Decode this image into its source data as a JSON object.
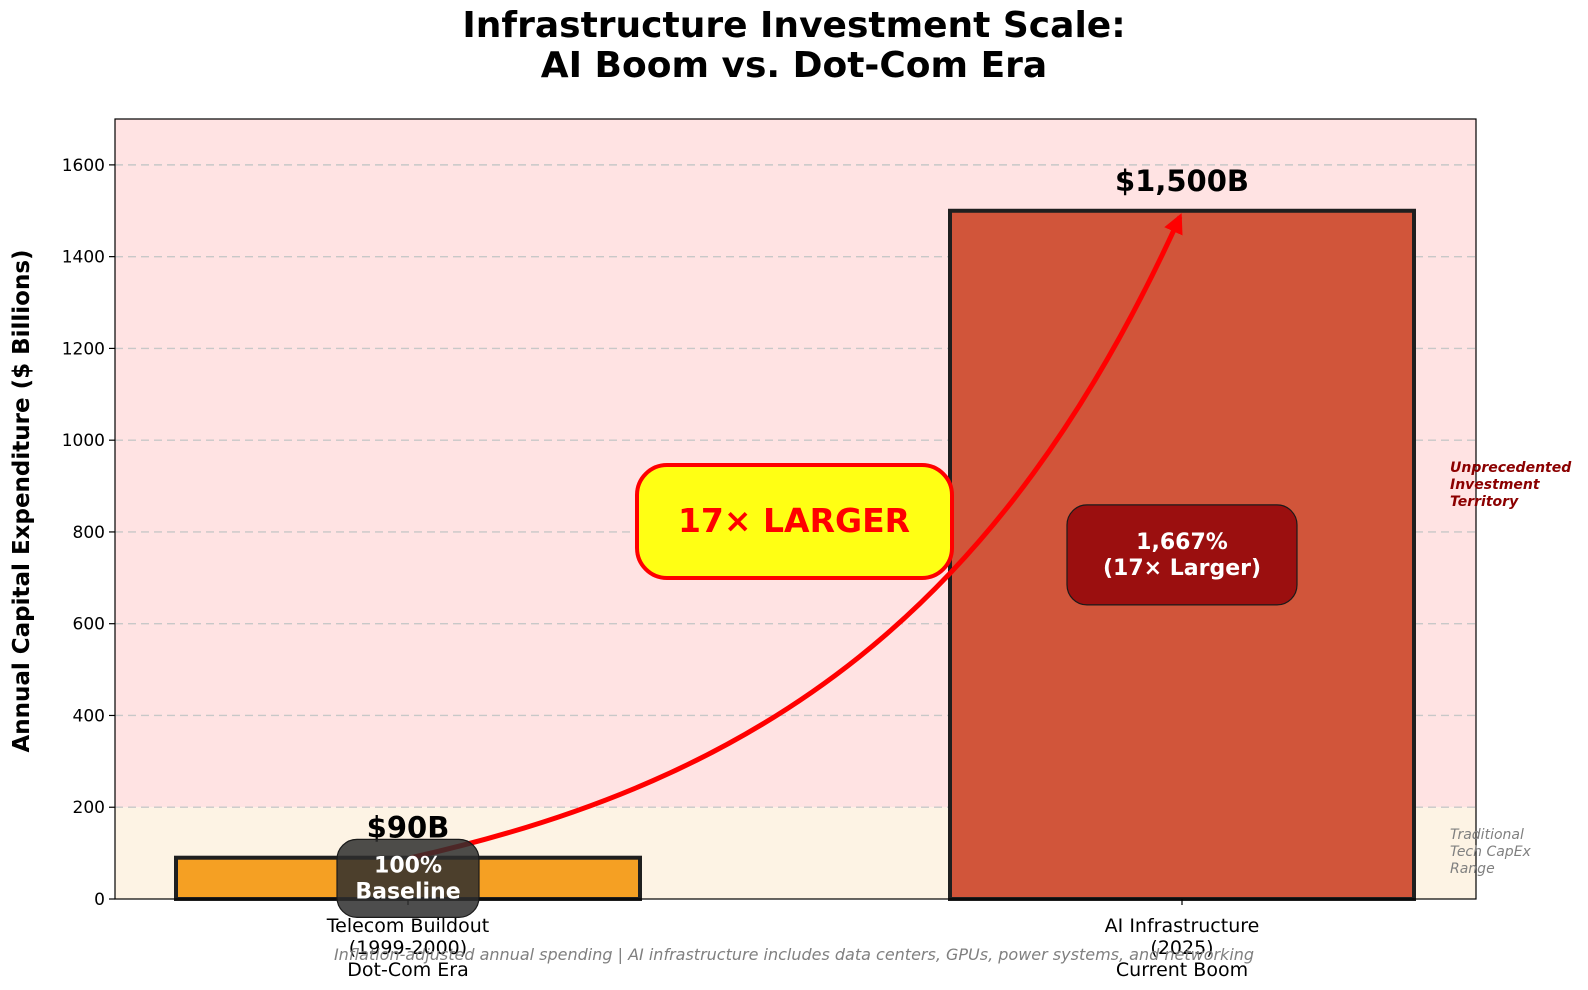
{
  "chart_data": {
    "type": "bar",
    "title_lines": [
      "Infrastructure Investment Scale:",
      "AI Boom vs. Dot-Com Era"
    ],
    "ylabel": "Annual Capital Expenditure ($ Billions)",
    "xlabel": "",
    "ylim": [
      0,
      1700
    ],
    "yticks": [
      0,
      200,
      400,
      600,
      800,
      1000,
      1200,
      1400,
      1600
    ],
    "grid": "y-dashed",
    "bars": [
      {
        "category_lines": [
          "Telecom Buildout",
          "(1999-2000)",
          "Dot-Com Era"
        ],
        "value": 90,
        "value_label": "$90B",
        "pct_lines": [
          "100%",
          "Baseline"
        ],
        "color": "#f5a023",
        "box_color": "#2e2e2e"
      },
      {
        "category_lines": [
          "AI Infrastructure",
          "(2025)",
          "Current Boom"
        ],
        "value": 1500,
        "value_label": "$1,500B",
        "pct_lines": [
          "1,667%",
          "(17× Larger)"
        ],
        "color": "#d1553a",
        "box_color": "#9b0f0f"
      }
    ],
    "zones": [
      {
        "from": 0,
        "to": 200,
        "color": "#fdf3e4",
        "label_lines": [
          "Traditional",
          "Tech CapEx",
          "Range"
        ]
      },
      {
        "from": 200,
        "to": 1700,
        "color": "#ffe3e3",
        "label_lines": [
          "Unprecedented",
          "Investment",
          "Territory"
        ]
      }
    ],
    "callout": {
      "text": "17× LARGER",
      "fill": "#ffff14",
      "border": "#ff0000"
    },
    "arrow_color": "#ff0000",
    "footnote": "Inflation-adjusted annual spending | AI infrastructure includes data centers, GPUs, power systems, and networking"
  }
}
